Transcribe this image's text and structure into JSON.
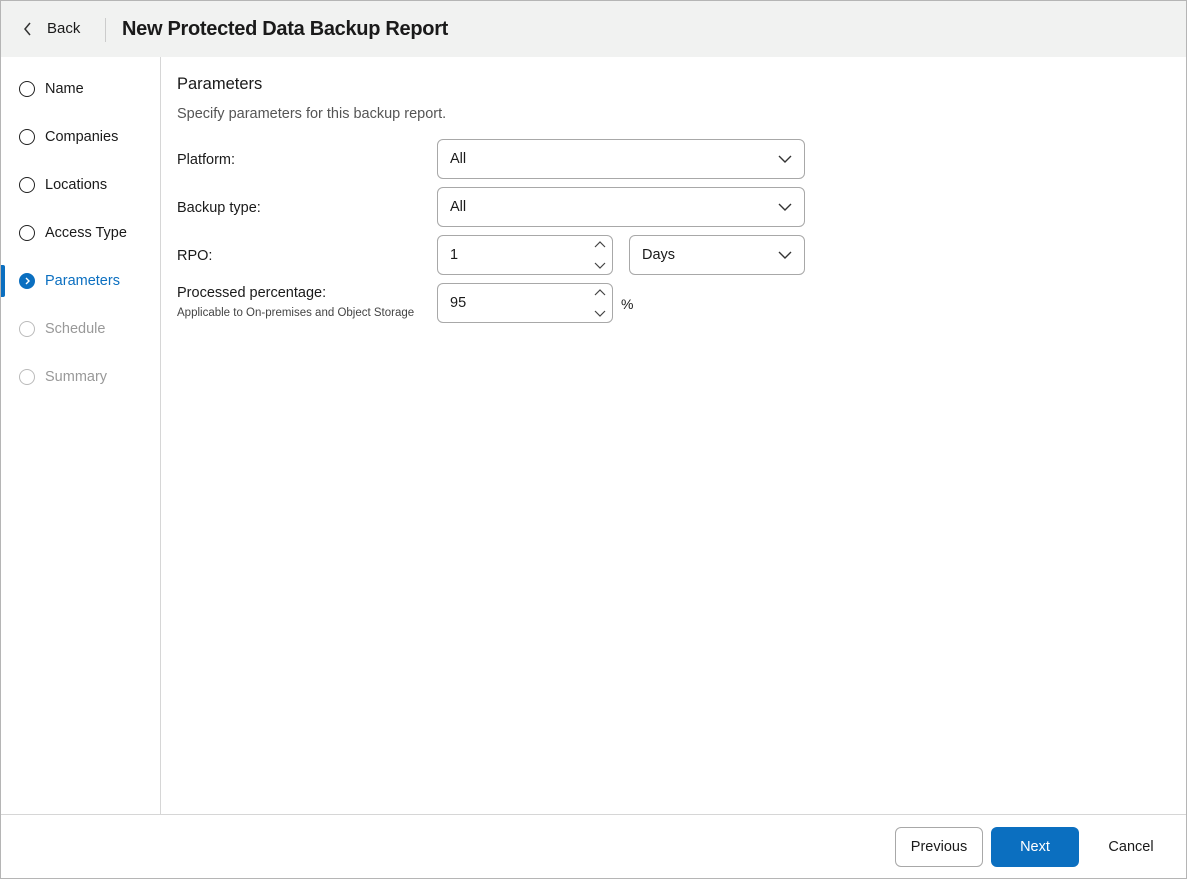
{
  "header": {
    "back_label": "Back",
    "title": "New Protected Data Backup Report"
  },
  "sidebar": {
    "steps": [
      {
        "label": "Name",
        "state": "pending"
      },
      {
        "label": "Companies",
        "state": "pending"
      },
      {
        "label": "Locations",
        "state": "pending"
      },
      {
        "label": "Access Type",
        "state": "pending"
      },
      {
        "label": "Parameters",
        "state": "active"
      },
      {
        "label": "Schedule",
        "state": "disabled"
      },
      {
        "label": "Summary",
        "state": "disabled"
      }
    ]
  },
  "main": {
    "title": "Parameters",
    "description": "Specify parameters for this backup report.",
    "platform": {
      "label": "Platform:",
      "value": "All"
    },
    "backup_type": {
      "label": "Backup type:",
      "value": "All"
    },
    "rpo": {
      "label": "RPO:",
      "value": "1",
      "unit": "Days"
    },
    "processed": {
      "label": "Processed percentage:",
      "sublabel": "Applicable to On-premises and Object Storage",
      "value": "95",
      "unit": "%"
    }
  },
  "footer": {
    "previous": "Previous",
    "next": "Next",
    "cancel": "Cancel"
  },
  "colors": {
    "accent": "#0b6fc0",
    "header_bg": "#f1f2f1"
  }
}
